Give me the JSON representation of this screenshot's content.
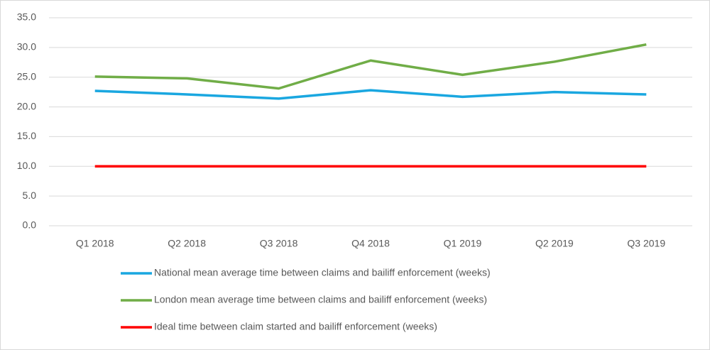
{
  "chart_data": {
    "type": "line",
    "categories": [
      "Q1 2018",
      "Q2 2018",
      "Q3 2018",
      "Q4 2018",
      "Q1 2019",
      "Q2 2019",
      "Q3 2019"
    ],
    "series": [
      {
        "name": "National mean average time between claims and bailiff enforcement (weeks)",
        "color": "#1aa7e0",
        "values": [
          22.7,
          22.1,
          21.4,
          22.8,
          21.7,
          22.5,
          22.1
        ]
      },
      {
        "name": "London mean average time between claims and bailiff enforcement (weeks)",
        "color": "#70ad47",
        "values": [
          25.1,
          24.8,
          23.1,
          27.8,
          25.4,
          27.6,
          30.5
        ]
      },
      {
        "name": "Ideal time between claim started and bailiff enforcement (weeks)",
        "color": "#ff0000",
        "values": [
          10,
          10,
          10,
          10,
          10,
          10,
          10
        ]
      }
    ],
    "ylim": [
      0,
      35
    ],
    "yticks": [
      {
        "value": 0,
        "label": "0.0"
      },
      {
        "value": 5,
        "label": "5.0"
      },
      {
        "value": 10,
        "label": "10.0"
      },
      {
        "value": 15,
        "label": "15.0"
      },
      {
        "value": 20,
        "label": "20.0"
      },
      {
        "value": 25,
        "label": "25.0"
      },
      {
        "value": 30,
        "label": "30.0"
      },
      {
        "value": 35,
        "label": "35.0"
      }
    ],
    "grid": true,
    "legend": "bottom"
  }
}
